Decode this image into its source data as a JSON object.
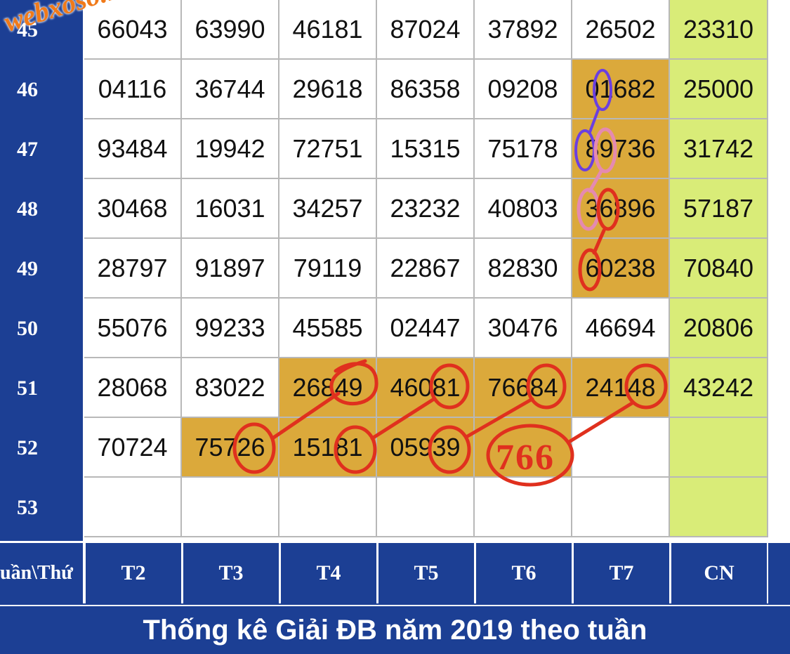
{
  "watermark": "webxoso.net",
  "weeks": [
    "45",
    "46",
    "47",
    "48",
    "49",
    "50",
    "51",
    "52",
    "53"
  ],
  "days": [
    "T2",
    "T3",
    "T4",
    "T5",
    "T6",
    "T7",
    "CN"
  ],
  "corner_label": "uần\\Thứ",
  "title": "Thống kê Giải ĐB năm 2019 theo tuần",
  "rows": [
    [
      "66043",
      "63990",
      "46181",
      "87024",
      "37892",
      "26502",
      "23310"
    ],
    [
      "04116",
      "36744",
      "29618",
      "86358",
      "09208",
      "01682",
      "25000"
    ],
    [
      "93484",
      "19942",
      "72751",
      "15315",
      "75178",
      "89736",
      "31742"
    ],
    [
      "30468",
      "16031",
      "34257",
      "23232",
      "40803",
      "36896",
      "57187"
    ],
    [
      "28797",
      "91897",
      "79119",
      "22867",
      "82830",
      "60238",
      "70840"
    ],
    [
      "55076",
      "99233",
      "45585",
      "02447",
      "30476",
      "46694",
      "20806"
    ],
    [
      "28068",
      "83022",
      "26849",
      "46081",
      "76684",
      "24148",
      "43242"
    ],
    [
      "70724",
      "75726",
      "15181",
      "05939",
      "",
      "",
      ""
    ],
    [
      "",
      "",
      "",
      "",
      "",
      "",
      ""
    ]
  ],
  "highlighted": [
    [
      1,
      5
    ],
    [
      2,
      5
    ],
    [
      3,
      5
    ],
    [
      4,
      5
    ],
    [
      6,
      2
    ],
    [
      6,
      3
    ],
    [
      6,
      4
    ],
    [
      6,
      5
    ],
    [
      7,
      1
    ],
    [
      7,
      2
    ],
    [
      7,
      3
    ],
    [
      7,
      4
    ]
  ],
  "annotation_text": "766",
  "colors": {
    "header_blue": "#1c3f94",
    "cn_green": "#d9ec78",
    "highlight_orange": "#dba93b",
    "marker_red": "#e0301e",
    "marker_purple": "#6b3fe0",
    "marker_pink": "#e58ab0"
  }
}
